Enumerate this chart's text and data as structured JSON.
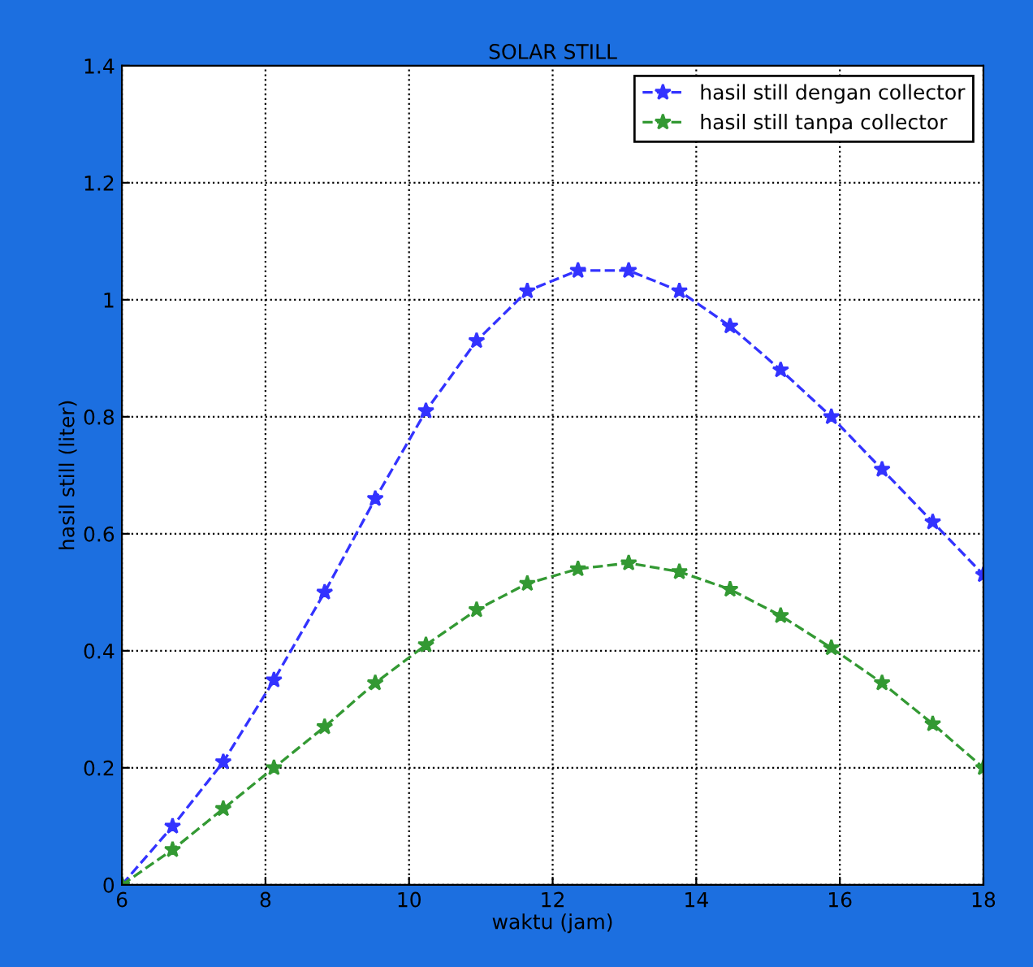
{
  "chart_data": {
    "type": "line",
    "title": "SOLAR STILL",
    "xlabel": "waktu (jam)",
    "ylabel": "hasil still (liter)",
    "x": [
      6,
      6.706,
      7.412,
      8.118,
      8.824,
      9.529,
      10.235,
      10.941,
      11.647,
      12.353,
      13.059,
      13.765,
      14.471,
      15.176,
      15.882,
      16.588,
      17.294,
      18
    ],
    "series": [
      {
        "name": "hasil still dengan collector",
        "color": "#3333ff",
        "values": [
          0,
          0.1,
          0.21,
          0.35,
          0.5,
          0.66,
          0.81,
          0.93,
          1.015,
          1.05,
          1.05,
          1.015,
          0.955,
          0.88,
          0.8,
          0.71,
          0.62,
          0.53
        ]
      },
      {
        "name": "hasil still tanpa collector",
        "color": "#339933",
        "values": [
          0,
          0.06,
          0.13,
          0.2,
          0.27,
          0.345,
          0.41,
          0.47,
          0.515,
          0.54,
          0.55,
          0.535,
          0.505,
          0.46,
          0.405,
          0.345,
          0.275,
          0.2
        ]
      }
    ],
    "xlim": [
      6,
      18
    ],
    "ylim": [
      0,
      1.4
    ],
    "xticks": [
      6,
      8,
      10,
      12,
      14,
      16,
      18
    ],
    "yticks": [
      0,
      0.2,
      0.4,
      0.6,
      0.8,
      1,
      1.2,
      1.4
    ],
    "grid": true,
    "legend": "top right",
    "marker": "star",
    "line_style": "dashed"
  }
}
